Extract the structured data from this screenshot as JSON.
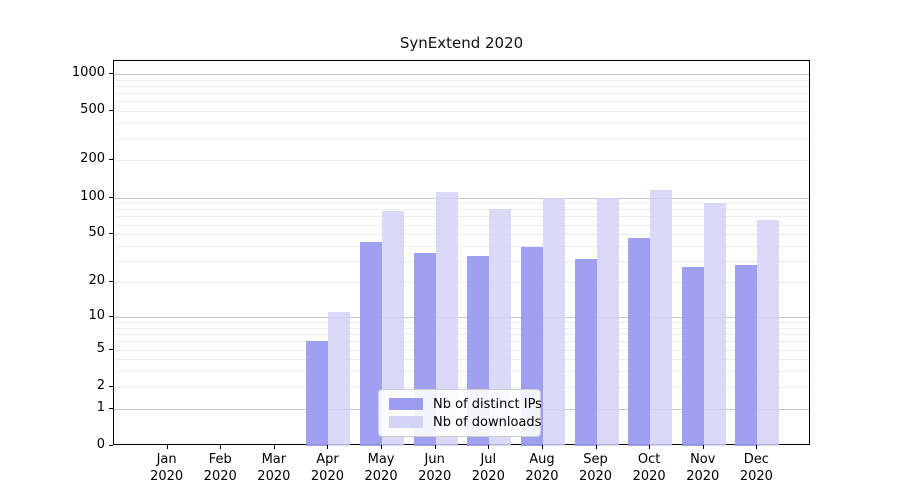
{
  "chart_data": {
    "type": "bar",
    "title": "SynExtend 2020",
    "y_scale": "log10(1+x)",
    "y_ticks": [
      0,
      1,
      2,
      5,
      10,
      20,
      50,
      100,
      200,
      500,
      1000
    ],
    "ylim": [
      0,
      1280
    ],
    "grid": "on",
    "legend_position": "bottom-center-inside",
    "categories": [
      "Jan 2020",
      "Feb 2020",
      "Mar 2020",
      "Apr 2020",
      "May 2020",
      "Jun 2020",
      "Jul 2020",
      "Aug 2020",
      "Sep 2020",
      "Oct 2020",
      "Nov 2020",
      "Dec 2020"
    ],
    "series": [
      {
        "name": "Nb of distinct IPs",
        "color": "#9b9bf0",
        "values": [
          0,
          0,
          0,
          6,
          43,
          35,
          33,
          39,
          31,
          47,
          27,
          28
        ]
      },
      {
        "name": "Nb of downloads",
        "color": "#d3d3f7",
        "values": [
          0,
          0,
          0,
          11,
          78,
          110,
          80,
          100,
          100,
          115,
          90,
          65
        ]
      }
    ],
    "colors": {
      "major_grid": "#c9c9c9",
      "minor_grid": "#ededed",
      "axis": "#000000"
    }
  }
}
